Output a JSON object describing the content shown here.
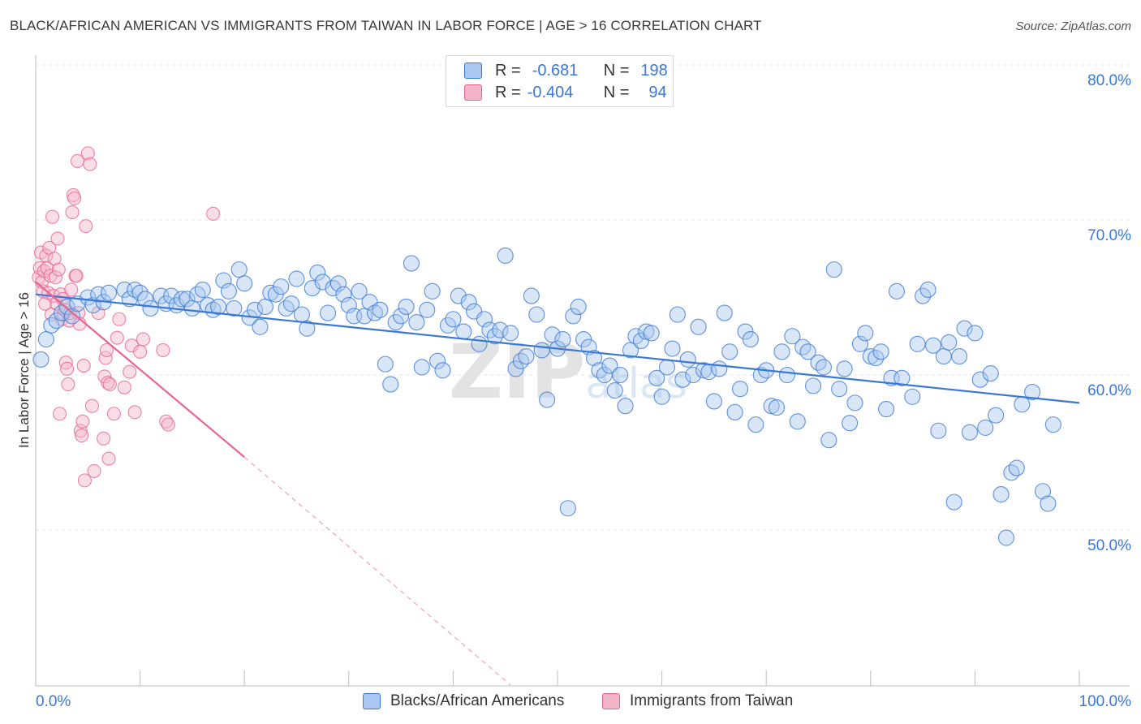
{
  "title": "BLACK/AFRICAN AMERICAN VS IMMIGRANTS FROM TAIWAN IN LABOR FORCE | AGE > 16 CORRELATION CHART",
  "source": "Source: ZipAtlas.com",
  "watermark": "ZIPatlas",
  "colors": {
    "blue": "#3a78d6",
    "blue_fill": "#a9c7f0",
    "pink": "#e8648f",
    "pink_fill": "#f5b5c9",
    "grid": "#e6e6e6",
    "axis_text": "#3a78d6"
  },
  "legend": {
    "r_label": "R =",
    "n_label": "N =",
    "blue": {
      "r": "-0.681",
      "n": "198"
    },
    "pink": {
      "r": "-0.404",
      "n": "94"
    }
  },
  "chart_data": {
    "type": "scatter",
    "title": "BLACK/AFRICAN AMERICAN VS IMMIGRANTS FROM TAIWAN IN LABOR FORCE | AGE > 16 CORRELATION CHART",
    "xlabel": "",
    "ylabel": "In Labor Force | Age > 16",
    "xlim": [
      0,
      100
    ],
    "ylim": [
      40,
      82
    ],
    "x_tick_labels": [
      "0.0%",
      "100.0%"
    ],
    "y_ticks": [
      50,
      60,
      70,
      80
    ],
    "y_tick_labels": [
      "50.0%",
      "60.0%",
      "70.0%",
      "80.0%"
    ],
    "grid": true,
    "legend_position": "top-center",
    "series": [
      {
        "name": "Blacks/African Americans",
        "color": "#3a78d6",
        "trend": {
          "x": [
            0,
            100
          ],
          "y": [
            65.2,
            58.2
          ],
          "dashed_extension": false
        },
        "points": [
          [
            0.5,
            61.0
          ],
          [
            1.0,
            62.3
          ],
          [
            1.5,
            63.2
          ],
          [
            2.0,
            63.5
          ],
          [
            2.5,
            64.0
          ],
          [
            3.0,
            64.4
          ],
          [
            3.5,
            63.8
          ],
          [
            4.0,
            64.6
          ],
          [
            5.0,
            65.0
          ],
          [
            5.5,
            64.5
          ],
          [
            6.0,
            65.2
          ],
          [
            6.5,
            64.7
          ],
          [
            7.0,
            65.3
          ],
          [
            8.5,
            65.5
          ],
          [
            9.0,
            64.9
          ],
          [
            9.5,
            65.5
          ],
          [
            10.0,
            65.3
          ],
          [
            10.5,
            64.9
          ],
          [
            11.0,
            64.3
          ],
          [
            12.0,
            65.1
          ],
          [
            12.5,
            64.6
          ],
          [
            13.0,
            65.1
          ],
          [
            13.5,
            64.5
          ],
          [
            14.0,
            64.9
          ],
          [
            14.5,
            64.9
          ],
          [
            15.0,
            64.3
          ],
          [
            15.5,
            65.2
          ],
          [
            16.0,
            65.5
          ],
          [
            16.5,
            64.5
          ],
          [
            17.0,
            64.2
          ],
          [
            17.5,
            64.4
          ],
          [
            18.0,
            66.1
          ],
          [
            18.5,
            65.4
          ],
          [
            19.0,
            64.3
          ],
          [
            19.5,
            66.8
          ],
          [
            20.0,
            65.9
          ],
          [
            20.5,
            63.7
          ],
          [
            21.0,
            64.2
          ],
          [
            21.5,
            63.1
          ],
          [
            22.0,
            64.4
          ],
          [
            22.5,
            65.3
          ],
          [
            23.0,
            65.2
          ],
          [
            23.5,
            65.7
          ],
          [
            24.0,
            64.3
          ],
          [
            24.5,
            64.6
          ],
          [
            25.0,
            66.2
          ],
          [
            25.5,
            63.9
          ],
          [
            26.0,
            63.0
          ],
          [
            26.5,
            65.6
          ],
          [
            27.0,
            66.6
          ],
          [
            27.5,
            66.0
          ],
          [
            28.0,
            64.0
          ],
          [
            28.5,
            65.6
          ],
          [
            29.0,
            65.9
          ],
          [
            29.5,
            65.2
          ],
          [
            30.0,
            64.5
          ],
          [
            30.5,
            63.8
          ],
          [
            31.0,
            65.4
          ],
          [
            31.5,
            63.8
          ],
          [
            32.0,
            64.7
          ],
          [
            32.5,
            64.0
          ],
          [
            33.0,
            64.2
          ],
          [
            33.5,
            60.7
          ],
          [
            34.0,
            59.4
          ],
          [
            34.5,
            63.4
          ],
          [
            35.0,
            63.8
          ],
          [
            35.5,
            64.4
          ],
          [
            36.0,
            67.2
          ],
          [
            36.5,
            63.4
          ],
          [
            37.0,
            60.5
          ],
          [
            37.5,
            64.2
          ],
          [
            38.0,
            65.4
          ],
          [
            38.5,
            60.9
          ],
          [
            39.0,
            60.3
          ],
          [
            39.5,
            63.2
          ],
          [
            40.0,
            63.6
          ],
          [
            40.5,
            65.1
          ],
          [
            41.0,
            62.8
          ],
          [
            41.5,
            64.7
          ],
          [
            42.0,
            64.1
          ],
          [
            42.5,
            62.0
          ],
          [
            43.0,
            63.6
          ],
          [
            43.5,
            62.9
          ],
          [
            44.0,
            62.5
          ],
          [
            44.5,
            62.9
          ],
          [
            45.0,
            67.7
          ],
          [
            45.5,
            62.7
          ],
          [
            46.0,
            60.4
          ],
          [
            46.5,
            60.9
          ],
          [
            47.0,
            61.2
          ],
          [
            47.5,
            65.1
          ],
          [
            48.0,
            63.9
          ],
          [
            48.5,
            61.6
          ],
          [
            49.0,
            58.4
          ],
          [
            49.5,
            62.6
          ],
          [
            50.0,
            61.7
          ],
          [
            50.5,
            62.3
          ],
          [
            51.0,
            51.4
          ],
          [
            51.5,
            63.8
          ],
          [
            52.0,
            64.4
          ],
          [
            52.5,
            62.3
          ],
          [
            53.0,
            61.8
          ],
          [
            53.5,
            61.1
          ],
          [
            54.0,
            60.3
          ],
          [
            54.5,
            60.0
          ],
          [
            55.0,
            60.6
          ],
          [
            55.5,
            59.0
          ],
          [
            56.0,
            60.0
          ],
          [
            56.5,
            58.0
          ],
          [
            57.0,
            61.6
          ],
          [
            57.5,
            62.5
          ],
          [
            58.0,
            62.2
          ],
          [
            58.5,
            62.8
          ],
          [
            59.0,
            62.7
          ],
          [
            59.5,
            59.8
          ],
          [
            60.0,
            58.6
          ],
          [
            60.5,
            60.5
          ],
          [
            61.0,
            61.7
          ],
          [
            61.5,
            63.9
          ],
          [
            62.0,
            59.7
          ],
          [
            62.5,
            61.0
          ],
          [
            63.0,
            60.0
          ],
          [
            63.5,
            63.1
          ],
          [
            64.0,
            60.3
          ],
          [
            64.5,
            60.2
          ],
          [
            65.0,
            58.3
          ],
          [
            65.5,
            60.4
          ],
          [
            66.0,
            64.0
          ],
          [
            66.5,
            61.5
          ],
          [
            67.0,
            57.6
          ],
          [
            67.5,
            59.1
          ],
          [
            68.0,
            62.8
          ],
          [
            68.5,
            62.3
          ],
          [
            69.0,
            56.8
          ],
          [
            69.5,
            60.0
          ],
          [
            70.0,
            60.3
          ],
          [
            70.5,
            58.0
          ],
          [
            71.0,
            57.9
          ],
          [
            71.5,
            61.5
          ],
          [
            72.0,
            60.0
          ],
          [
            72.5,
            62.5
          ],
          [
            73.0,
            57.0
          ],
          [
            73.5,
            61.8
          ],
          [
            74.0,
            61.5
          ],
          [
            74.5,
            59.3
          ],
          [
            75.0,
            60.8
          ],
          [
            75.5,
            60.5
          ],
          [
            76.0,
            55.8
          ],
          [
            76.5,
            66.8
          ],
          [
            77.0,
            59.1
          ],
          [
            77.5,
            60.4
          ],
          [
            78.0,
            56.9
          ],
          [
            78.5,
            58.2
          ],
          [
            79.0,
            62.0
          ],
          [
            79.5,
            62.7
          ],
          [
            80.0,
            61.2
          ],
          [
            80.5,
            61.1
          ],
          [
            81.0,
            61.5
          ],
          [
            81.5,
            57.8
          ],
          [
            82.0,
            59.8
          ],
          [
            82.5,
            65.4
          ],
          [
            83.0,
            59.8
          ],
          [
            84.0,
            58.6
          ],
          [
            84.5,
            62.0
          ],
          [
            85.0,
            65.1
          ],
          [
            85.5,
            65.5
          ],
          [
            86.0,
            61.9
          ],
          [
            86.5,
            56.4
          ],
          [
            87.0,
            61.2
          ],
          [
            87.5,
            62.1
          ],
          [
            88.0,
            51.8
          ],
          [
            88.5,
            61.2
          ],
          [
            89.0,
            63.0
          ],
          [
            89.5,
            56.3
          ],
          [
            90.0,
            62.7
          ],
          [
            90.5,
            59.7
          ],
          [
            91.0,
            56.6
          ],
          [
            91.5,
            60.1
          ],
          [
            92.0,
            57.4
          ],
          [
            92.5,
            52.3
          ],
          [
            93.0,
            49.5
          ],
          [
            93.5,
            53.7
          ],
          [
            94.0,
            54.0
          ],
          [
            94.5,
            58.1
          ],
          [
            95.5,
            58.9
          ],
          [
            96.5,
            52.5
          ],
          [
            97.0,
            51.7
          ],
          [
            97.5,
            56.8
          ]
        ]
      },
      {
        "name": "Immigrants from Taiwan",
        "color": "#e8648f",
        "trend": {
          "x": [
            0,
            20
          ],
          "y": [
            66.0,
            54.7
          ],
          "dashed_extension": true,
          "dashed_to": [
            45.5,
            40.0
          ]
        },
        "points": [
          [
            0.3,
            66.3
          ],
          [
            0.4,
            66.9
          ],
          [
            0.5,
            67.9
          ],
          [
            0.6,
            66.0
          ],
          [
            0.7,
            65.4
          ],
          [
            0.8,
            66.7
          ],
          [
            0.9,
            64.6
          ],
          [
            1.0,
            67.7
          ],
          [
            1.1,
            66.9
          ],
          [
            1.2,
            65.3
          ],
          [
            1.3,
            68.2
          ],
          [
            1.4,
            66.4
          ],
          [
            1.5,
            63.9
          ],
          [
            1.6,
            70.2
          ],
          [
            1.7,
            65.1
          ],
          [
            1.8,
            67.5
          ],
          [
            1.9,
            66.3
          ],
          [
            2.0,
            64.6
          ],
          [
            2.1,
            68.8
          ],
          [
            2.2,
            66.8
          ],
          [
            2.3,
            57.5
          ],
          [
            2.4,
            65.2
          ],
          [
            2.5,
            63.6
          ],
          [
            2.6,
            64.9
          ],
          [
            2.7,
            63.9
          ],
          [
            2.8,
            64.2
          ],
          [
            2.9,
            60.8
          ],
          [
            3.0,
            60.4
          ],
          [
            3.1,
            59.4
          ],
          [
            3.2,
            63.5
          ],
          [
            3.3,
            64.0
          ],
          [
            3.4,
            65.5
          ],
          [
            3.5,
            70.5
          ],
          [
            3.6,
            71.6
          ],
          [
            3.7,
            71.4
          ],
          [
            3.8,
            66.4
          ],
          [
            3.9,
            66.4
          ],
          [
            4.0,
            73.8
          ],
          [
            4.1,
            64.0
          ],
          [
            4.2,
            63.3
          ],
          [
            4.3,
            56.4
          ],
          [
            4.4,
            56.1
          ],
          [
            4.5,
            57.0
          ],
          [
            4.6,
            60.6
          ],
          [
            4.7,
            53.2
          ],
          [
            4.8,
            69.6
          ],
          [
            5.0,
            74.3
          ],
          [
            5.2,
            73.6
          ],
          [
            5.4,
            58.0
          ],
          [
            5.6,
            53.8
          ],
          [
            6.0,
            64.0
          ],
          [
            6.5,
            55.9
          ],
          [
            6.6,
            59.9
          ],
          [
            6.7,
            61.1
          ],
          [
            6.8,
            61.6
          ],
          [
            6.9,
            59.5
          ],
          [
            7.0,
            54.6
          ],
          [
            7.1,
            59.4
          ],
          [
            7.5,
            57.5
          ],
          [
            7.8,
            62.4
          ],
          [
            8.0,
            63.6
          ],
          [
            8.5,
            59.2
          ],
          [
            9.0,
            60.2
          ],
          [
            9.2,
            61.9
          ],
          [
            9.5,
            57.6
          ],
          [
            10.0,
            61.5
          ],
          [
            10.3,
            62.3
          ],
          [
            12.5,
            57.0
          ],
          [
            12.7,
            56.8
          ],
          [
            17.0,
            70.4
          ],
          [
            12.2,
            61.6
          ]
        ]
      }
    ]
  }
}
